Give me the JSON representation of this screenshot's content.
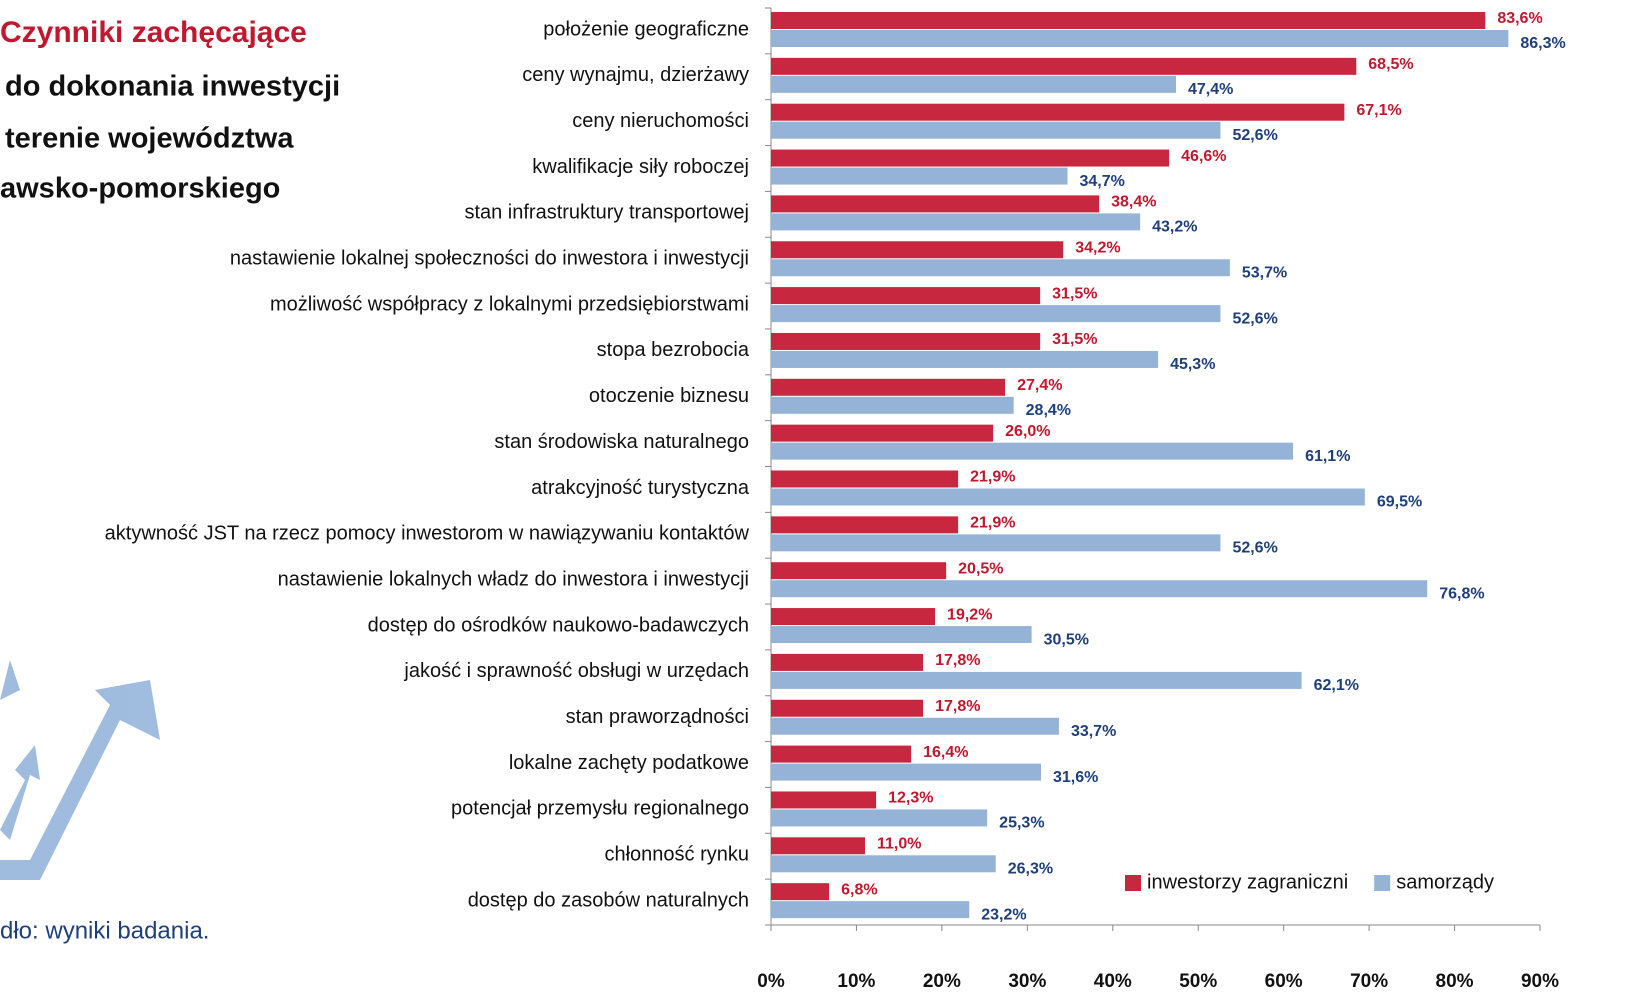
{
  "chart_data": {
    "type": "bar",
    "orientation": "horizontal",
    "title_lines": [
      "Czynniki zachęcające",
      "do dokonania inwestycji",
      "terenie województwa",
      "awsko-pomorskiego"
    ],
    "source": "dło: wyniki badania.",
    "categories": [
      "położenie geograficzne",
      "ceny wynajmu, dzierżawy",
      "ceny nieruchomości",
      "kwalifikacje siły roboczej",
      "stan infrastruktury transportowej",
      "nastawienie lokalnej społeczności do inwestora i inwestycji",
      "możliwość współpracy z lokalnymi przedsiębiorstwami",
      "stopa bezrobocia",
      "otoczenie biznesu",
      "stan środowiska naturalnego",
      "atrakcyjność turystyczna",
      "aktywność JST na rzecz pomocy inwestorom w nawiązywaniu kontaktów",
      "nastawienie lokalnych władz do inwestora i inwestycji",
      "dostęp do ośrodków naukowo-badawczych",
      "jakość i sprawność obsługi w urzędach",
      "stan praworządności",
      "lokalne zachęty podatkowe",
      "potencjał przemysłu regionalnego",
      "chłonność rynku",
      "dostęp do zasobów naturalnych"
    ],
    "series": [
      {
        "name": "inwestorzy zagraniczni",
        "color": "#c8283f",
        "label_color": "#c0182f",
        "values": [
          83.6,
          68.5,
          67.1,
          46.6,
          38.4,
          34.2,
          31.5,
          31.5,
          27.4,
          26.0,
          21.9,
          21.9,
          20.5,
          19.2,
          17.8,
          17.8,
          16.4,
          12.3,
          11.0,
          6.8
        ],
        "value_labels": [
          "83,6%",
          "68,5%",
          "67,1%",
          "46,6%",
          "38,4%",
          "34,2%",
          "31,5%",
          "31,5%",
          "27,4%",
          "26,0%",
          "21,9%",
          "21,9%",
          "20,5%",
          "19,2%",
          "17,8%",
          "17,8%",
          "16,4%",
          "12,3%",
          "11,0%",
          "6,8%"
        ]
      },
      {
        "name": "samorządy",
        "color": "#95b3d7",
        "label_color": "#1f3f7a",
        "values": [
          86.3,
          47.4,
          52.6,
          34.7,
          43.2,
          53.7,
          52.6,
          45.3,
          28.4,
          61.1,
          69.5,
          52.6,
          76.8,
          30.5,
          62.1,
          33.7,
          31.6,
          25.3,
          26.3,
          23.2
        ],
        "value_labels": [
          "86,3%",
          "47,4%",
          "52,6%",
          "34,7%",
          "43,2%",
          "53,7%",
          "52,6%",
          "45,3%",
          "28,4%",
          "61,1%",
          "69,5%",
          "52,6%",
          "76,8%",
          "30,5%",
          "62,1%",
          "33,7%",
          "31,6%",
          "25,3%",
          "26,3%",
          "23,2%"
        ]
      }
    ],
    "xlim": [
      0,
      90
    ],
    "xticks": [
      {
        "value": 0,
        "label": "0%"
      },
      {
        "value": 10,
        "label": "10%"
      },
      {
        "value": 20,
        "label": "20%"
      },
      {
        "value": 30,
        "label": "30%"
      },
      {
        "value": 40,
        "label": "40%"
      },
      {
        "value": 50,
        "label": "50%"
      },
      {
        "value": 60,
        "label": "60%"
      },
      {
        "value": 70,
        "label": "70%"
      },
      {
        "value": 80,
        "label": "80%"
      },
      {
        "value": 90,
        "label": "90%"
      }
    ],
    "grid": false,
    "legend": "lower right"
  }
}
